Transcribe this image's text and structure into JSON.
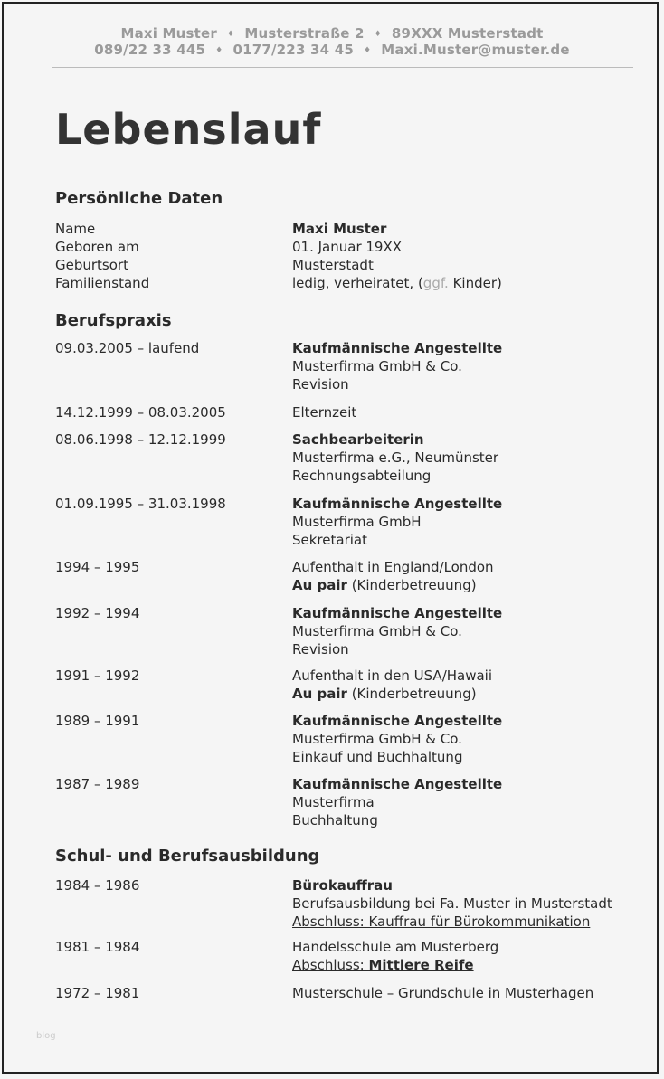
{
  "header": {
    "line1": [
      "Maxi Muster",
      "Musterstraße 2",
      "89XXX Musterstadt"
    ],
    "line2": [
      "089/22 33 445",
      "0177/223 34 45",
      "Maxi.Muster@muster.de"
    ],
    "separator": "♦"
  },
  "title": "Lebenslauf",
  "personal": {
    "heading": "Persönliche Daten",
    "rows": [
      {
        "label": "Name",
        "value": "Maxi Muster"
      },
      {
        "label": "Geboren am",
        "value": "01. Januar 19XX"
      },
      {
        "label": "Geburtsort",
        "value": "Musterstadt"
      },
      {
        "label": "Familienstand",
        "value_a": "ledig, verheiratet, (",
        "value_ggf": "ggf.",
        "value_b": " Kinder)"
      }
    ]
  },
  "career": {
    "heading": "Berufspraxis",
    "entries": [
      {
        "date": "09.03.2005 – laufend",
        "title": "Kaufmännische Angestellte",
        "l2": "Musterfirma GmbH & Co.",
        "l3": "Revision"
      },
      {
        "date": "14.12.1999 – 08.03.2005",
        "l1": "Elternzeit"
      },
      {
        "date": "08.06.1998 – 12.12.1999",
        "title": "Sachbearbeiterin",
        "l2": "Musterfirma  e.G., Neumünster",
        "l3": "Rechnungsabteilung"
      },
      {
        "date": "01.09.1995 – 31.03.1998",
        "title": "Kaufmännische Angestellte",
        "l2": "Musterfirma GmbH",
        "l3": "Sekretariat"
      },
      {
        "date": "1994 – 1995",
        "l1": "Aufenthalt in England/London",
        "bold": "Au pair",
        "rest": " (Kinderbetreuung)"
      },
      {
        "date": "1992 – 1994",
        "title": "Kaufmännische Angestellte",
        "l2": "Musterfirma GmbH & Co.",
        "l3": "Revision"
      },
      {
        "date": "1991 – 1992",
        "l1": "Aufenthalt in den USA/Hawaii",
        "bold": "Au pair",
        "rest": " (Kinderbetreuung)"
      },
      {
        "date": "1989 – 1991",
        "title": "Kaufmännische Angestellte",
        "l2": "Musterfirma GmbH & Co.",
        "l3": "Einkauf und Buchhaltung"
      },
      {
        "date": "1987 – 1989",
        "title": "Kaufmännische Angestellte",
        "l2": "Musterfirma",
        "l3": "Buchhaltung"
      }
    ]
  },
  "education": {
    "heading": "Schul- und Berufsausbildung",
    "entries": [
      {
        "date": "1984 – 1986",
        "title": "Bürokauffrau",
        "l2": "Berufsausbildung bei Fa. Muster in Musterstadt",
        "l3": "Abschluss: Kauffrau für Bürokommunikation"
      },
      {
        "date": "1981 – 1984",
        "l1": "Handelsschule am Musterberg",
        "u": "Abschluss: ",
        "ub": "Mittlere Reife"
      },
      {
        "date": "1972 – 1981",
        "l1": "Musterschule – Grundschule in Musterhagen"
      }
    ]
  },
  "watermark": "blog"
}
